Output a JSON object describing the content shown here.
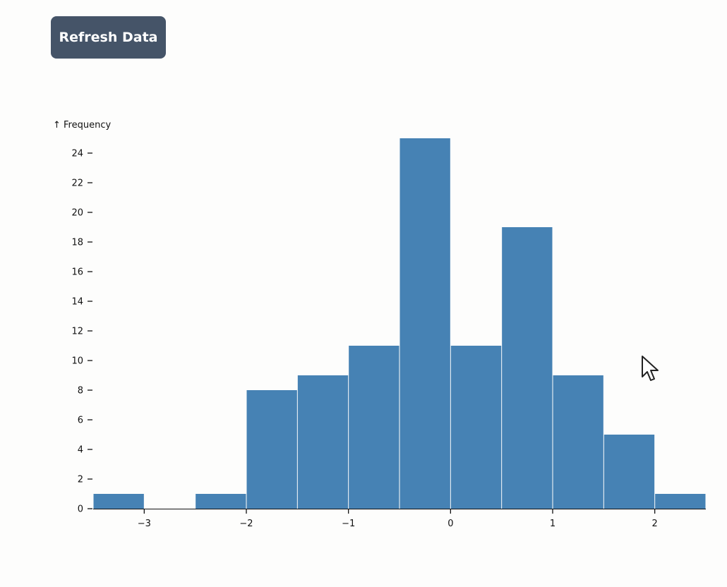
{
  "toolbar": {
    "refresh_label": "Refresh Data"
  },
  "chart_data": {
    "type": "bar",
    "ylabel": "↑ Frequency",
    "x_domain": [
      -3.5,
      2.5
    ],
    "ylim": [
      0,
      25
    ],
    "bin_width": 0.5,
    "bins": [
      {
        "x0": -3.5,
        "x1": -3.0,
        "count": 1
      },
      {
        "x0": -3.0,
        "x1": -2.5,
        "count": 0
      },
      {
        "x0": -2.5,
        "x1": -2.0,
        "count": 1
      },
      {
        "x0": -2.0,
        "x1": -1.5,
        "count": 8
      },
      {
        "x0": -1.5,
        "x1": -1.0,
        "count": 9
      },
      {
        "x0": -1.0,
        "x1": -0.5,
        "count": 11
      },
      {
        "x0": -0.5,
        "x1": 0.0,
        "count": 25
      },
      {
        "x0": 0.0,
        "x1": 0.5,
        "count": 11
      },
      {
        "x0": 0.5,
        "x1": 1.0,
        "count": 19
      },
      {
        "x0": 1.0,
        "x1": 1.5,
        "count": 9
      },
      {
        "x0": 1.5,
        "x1": 2.0,
        "count": 5
      },
      {
        "x0": 2.0,
        "x1": 2.5,
        "count": 1
      }
    ],
    "x_ticks": [
      {
        "value": -3,
        "label": "−3"
      },
      {
        "value": -2,
        "label": "−2"
      },
      {
        "value": -1,
        "label": "−1"
      },
      {
        "value": 0,
        "label": "0"
      },
      {
        "value": 1,
        "label": "1"
      },
      {
        "value": 2,
        "label": "2"
      }
    ],
    "y_ticks": [
      {
        "value": 0,
        "label": "0"
      },
      {
        "value": 2,
        "label": "2"
      },
      {
        "value": 4,
        "label": "4"
      },
      {
        "value": 6,
        "label": "6"
      },
      {
        "value": 8,
        "label": "8"
      },
      {
        "value": 10,
        "label": "10"
      },
      {
        "value": 12,
        "label": "12"
      },
      {
        "value": 14,
        "label": "14"
      },
      {
        "value": 16,
        "label": "16"
      },
      {
        "value": 18,
        "label": "18"
      },
      {
        "value": 20,
        "label": "20"
      },
      {
        "value": 22,
        "label": "22"
      },
      {
        "value": 24,
        "label": "24"
      }
    ],
    "bar_color": "#4682b4",
    "grid": false
  },
  "icons": {
    "cursor": "mouse-pointer-icon"
  }
}
